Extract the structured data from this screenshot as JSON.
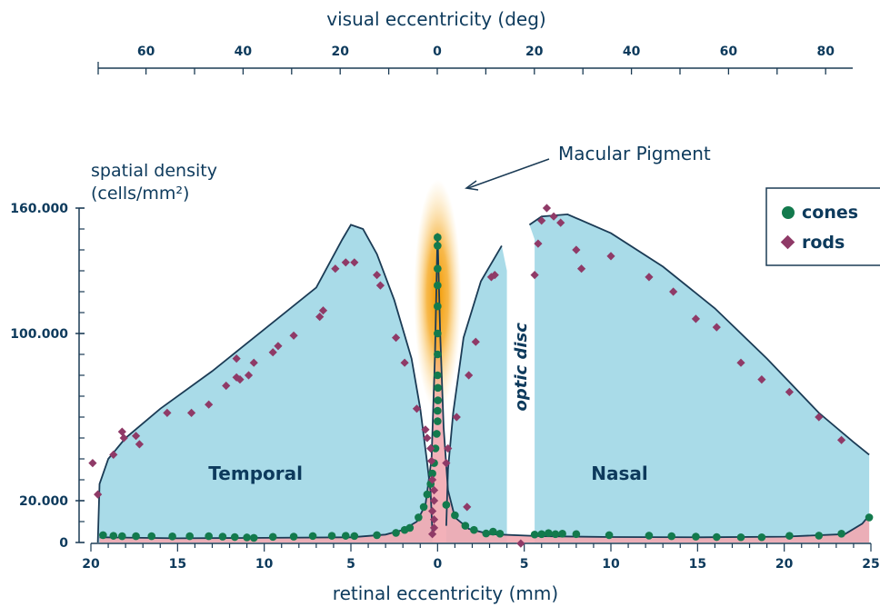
{
  "chart_data": {
    "type": "area",
    "title": "",
    "top_axis": {
      "label": "visual eccentricity (deg)",
      "tick_labels": [
        {
          "label": "60",
          "deg": -60
        },
        {
          "label": "40",
          "deg": -40
        },
        {
          "label": "20",
          "deg": -20
        },
        {
          "label": "0",
          "deg": 0
        },
        {
          "label": "20",
          "deg": 20
        },
        {
          "label": "40",
          "deg": 40
        },
        {
          "label": "60",
          "deg": 60
        },
        {
          "label": "80",
          "deg": 80
        }
      ],
      "minor_step_deg": 10
    },
    "ylabel_line1": "spatial density",
    "ylabel_line2": "(cells/mm²)",
    "xlabel": "retinal eccentricity (mm)",
    "xlim": [
      -20,
      25
    ],
    "ylim": [
      0,
      160000
    ],
    "y_tick_labels": [
      {
        "label": "160.000",
        "value": 160000
      },
      {
        "label": "100.000",
        "value": 100000
      },
      {
        "label": "20.000",
        "value": 20000
      },
      {
        "label": "0",
        "value": 0
      }
    ],
    "y_minor_step": 10000,
    "x_tick_labels": [
      {
        "label": "20",
        "value": -20
      },
      {
        "label": "15",
        "value": -15
      },
      {
        "label": "10",
        "value": -10
      },
      {
        "label": "5",
        "value": -5
      },
      {
        "label": "0",
        "value": 0
      },
      {
        "label": "5",
        "value": 5
      },
      {
        "label": "10",
        "value": 10
      },
      {
        "label": "15",
        "value": 15
      },
      {
        "label": "20",
        "value": 20
      },
      {
        "label": "25",
        "value": 25
      }
    ],
    "x_minor_step": 1,
    "legend": {
      "placement": "top-right",
      "items": [
        "cones",
        "rods"
      ]
    },
    "annotations": {
      "macular_pigment": "Macular Pigment",
      "optic_disc": "optic disc",
      "temporal": "Temporal",
      "nasal": "Nasal"
    },
    "colors": {
      "rod_fill": "#a9dbe8",
      "cone_fill": "#f2a8b1",
      "outline": "#1b3b55",
      "cone_marker": "#137a4d",
      "rod_marker": "#8f3a67",
      "text": "#0d3a5c",
      "pigment": "#f5a300"
    },
    "optic_disc_gap": {
      "x_from": 4,
      "x_to": 5.6
    },
    "rod_curve_temporal": [
      {
        "x": -19.6,
        "y": 0
      },
      {
        "x": -19.5,
        "y": 28000
      },
      {
        "x": -19,
        "y": 40000
      },
      {
        "x": -18,
        "y": 50000
      },
      {
        "x": -16,
        "y": 64000
      },
      {
        "x": -13,
        "y": 82000
      },
      {
        "x": -10,
        "y": 102000
      },
      {
        "x": -7,
        "y": 122000
      },
      {
        "x": -5.5,
        "y": 145000
      },
      {
        "x": -5,
        "y": 152000
      },
      {
        "x": -4.3,
        "y": 150000
      },
      {
        "x": -3.5,
        "y": 138000
      },
      {
        "x": -2.5,
        "y": 116000
      },
      {
        "x": -1.5,
        "y": 88000
      },
      {
        "x": -1,
        "y": 64000
      },
      {
        "x": -0.6,
        "y": 38000
      },
      {
        "x": -0.4,
        "y": 24000
      },
      {
        "x": -0.3,
        "y": 5000
      }
    ],
    "rod_curve_nasal_inner": [
      {
        "x": 0.5,
        "y": 8000
      },
      {
        "x": 0.6,
        "y": 35000
      },
      {
        "x": 0.9,
        "y": 62000
      },
      {
        "x": 1.5,
        "y": 98000
      },
      {
        "x": 2.5,
        "y": 125000
      },
      {
        "x": 3.7,
        "y": 142000
      }
    ],
    "rod_curve_nasal_outer": [
      {
        "x": 5.3,
        "y": 152000
      },
      {
        "x": 6,
        "y": 156000
      },
      {
        "x": 7.5,
        "y": 157000
      },
      {
        "x": 10,
        "y": 148000
      },
      {
        "x": 13,
        "y": 132000
      },
      {
        "x": 16,
        "y": 112000
      },
      {
        "x": 19,
        "y": 88000
      },
      {
        "x": 22,
        "y": 62000
      },
      {
        "x": 24,
        "y": 48000
      },
      {
        "x": 24.9,
        "y": 42000
      },
      {
        "x": 24.9,
        "y": 0
      }
    ],
    "cone_curve": [
      {
        "x": -19.5,
        "y": 2500
      },
      {
        "x": -15,
        "y": 2000
      },
      {
        "x": -10,
        "y": 2200
      },
      {
        "x": -5,
        "y": 2500
      },
      {
        "x": -3,
        "y": 3800
      },
      {
        "x": -2,
        "y": 6000
      },
      {
        "x": -1.2,
        "y": 10000
      },
      {
        "x": -0.7,
        "y": 18000
      },
      {
        "x": -0.35,
        "y": 40000
      },
      {
        "x": -0.15,
        "y": 90000
      },
      {
        "x": 0,
        "y": 148000
      },
      {
        "x": 0.15,
        "y": 100000
      },
      {
        "x": 0.35,
        "y": 55000
      },
      {
        "x": 0.6,
        "y": 25000
      },
      {
        "x": 1,
        "y": 12000
      },
      {
        "x": 1.8,
        "y": 6500
      },
      {
        "x": 3,
        "y": 4000
      },
      {
        "x": 6,
        "y": 3000
      },
      {
        "x": 10,
        "y": 2600
      },
      {
        "x": 15,
        "y": 2500
      },
      {
        "x": 20,
        "y": 2800
      },
      {
        "x": 23.5,
        "y": 4000
      },
      {
        "x": 24.5,
        "y": 9000
      },
      {
        "x": 24.9,
        "y": 13000
      }
    ],
    "series": [
      {
        "name": "cones",
        "marker": "circle",
        "points": [
          {
            "x": -19.3,
            "y": 3500
          },
          {
            "x": -18.7,
            "y": 3200
          },
          {
            "x": -18.2,
            "y": 3000
          },
          {
            "x": -17.4,
            "y": 3000
          },
          {
            "x": -16.5,
            "y": 3000
          },
          {
            "x": -15.3,
            "y": 2900
          },
          {
            "x": -14.3,
            "y": 3000
          },
          {
            "x": -13.2,
            "y": 3000
          },
          {
            "x": -12.4,
            "y": 2800
          },
          {
            "x": -11.7,
            "y": 2600
          },
          {
            "x": -11,
            "y": 2400
          },
          {
            "x": -10.6,
            "y": 2200
          },
          {
            "x": -9.5,
            "y": 2700
          },
          {
            "x": -8.3,
            "y": 2800
          },
          {
            "x": -7.2,
            "y": 3100
          },
          {
            "x": -6.1,
            "y": 3200
          },
          {
            "x": -5.3,
            "y": 3200
          },
          {
            "x": -4.8,
            "y": 3100
          },
          {
            "x": -3.5,
            "y": 3500
          },
          {
            "x": -2.4,
            "y": 4600
          },
          {
            "x": -1.9,
            "y": 6000
          },
          {
            "x": -1.6,
            "y": 7000
          },
          {
            "x": -1.1,
            "y": 12000
          },
          {
            "x": -0.8,
            "y": 17000
          },
          {
            "x": -0.6,
            "y": 23000
          },
          {
            "x": -0.4,
            "y": 28000
          },
          {
            "x": -0.3,
            "y": 33000
          },
          {
            "x": -0.2,
            "y": 38000
          },
          {
            "x": -0.12,
            "y": 45000
          },
          {
            "x": -0.05,
            "y": 52000
          },
          {
            "x": 0,
            "y": 58000
          },
          {
            "x": 0,
            "y": 63000
          },
          {
            "x": 0.02,
            "y": 68000
          },
          {
            "x": 0.02,
            "y": 74000
          },
          {
            "x": 0,
            "y": 80000
          },
          {
            "x": 0,
            "y": 90000
          },
          {
            "x": 0,
            "y": 100000
          },
          {
            "x": 0,
            "y": 113000
          },
          {
            "x": 0,
            "y": 123000
          },
          {
            "x": 0,
            "y": 131000
          },
          {
            "x": 0,
            "y": 142000
          },
          {
            "x": 0,
            "y": 146000
          },
          {
            "x": 0.5,
            "y": 18000
          },
          {
            "x": 1,
            "y": 13000
          },
          {
            "x": 1.6,
            "y": 8000
          },
          {
            "x": 2.1,
            "y": 6000
          },
          {
            "x": 2.8,
            "y": 4300
          },
          {
            "x": 3.2,
            "y": 5200
          },
          {
            "x": 3.6,
            "y": 4200
          },
          {
            "x": 5.6,
            "y": 3800
          },
          {
            "x": 6,
            "y": 4000
          },
          {
            "x": 6.4,
            "y": 4500
          },
          {
            "x": 6.8,
            "y": 4000
          },
          {
            "x": 7.2,
            "y": 4200
          },
          {
            "x": 8,
            "y": 4000
          },
          {
            "x": 9.9,
            "y": 3500
          },
          {
            "x": 12.2,
            "y": 3300
          },
          {
            "x": 13.5,
            "y": 3000
          },
          {
            "x": 14.9,
            "y": 2800
          },
          {
            "x": 16.1,
            "y": 2600
          },
          {
            "x": 17.5,
            "y": 2500
          },
          {
            "x": 18.7,
            "y": 2500
          },
          {
            "x": 20.3,
            "y": 3200
          },
          {
            "x": 22,
            "y": 3300
          },
          {
            "x": 23.3,
            "y": 4200
          },
          {
            "x": 24.9,
            "y": 12000
          }
        ]
      },
      {
        "name": "rods",
        "marker": "diamond",
        "points": [
          {
            "x": -19.9,
            "y": 38000
          },
          {
            "x": -19.6,
            "y": 23000
          },
          {
            "x": -18.7,
            "y": 42000
          },
          {
            "x": -18.2,
            "y": 53000
          },
          {
            "x": -18.1,
            "y": 50000
          },
          {
            "x": -17.4,
            "y": 51000
          },
          {
            "x": -17.2,
            "y": 47000
          },
          {
            "x": -15.6,
            "y": 62000
          },
          {
            "x": -14.2,
            "y": 62000
          },
          {
            "x": -13.2,
            "y": 66000
          },
          {
            "x": -12.2,
            "y": 75000
          },
          {
            "x": -11.6,
            "y": 79000
          },
          {
            "x": -11.4,
            "y": 78000
          },
          {
            "x": -11.6,
            "y": 88000
          },
          {
            "x": -10.9,
            "y": 80000
          },
          {
            "x": -10.6,
            "y": 86000
          },
          {
            "x": -9.5,
            "y": 91000
          },
          {
            "x": -9.2,
            "y": 94000
          },
          {
            "x": -8.3,
            "y": 99000
          },
          {
            "x": -6.8,
            "y": 108000
          },
          {
            "x": -6.6,
            "y": 111000
          },
          {
            "x": -5.9,
            "y": 131000
          },
          {
            "x": -5.3,
            "y": 134000
          },
          {
            "x": -4.8,
            "y": 134000
          },
          {
            "x": -3.5,
            "y": 128000
          },
          {
            "x": -3.3,
            "y": 123000
          },
          {
            "x": -2.4,
            "y": 98000
          },
          {
            "x": -1.9,
            "y": 86000
          },
          {
            "x": -1.2,
            "y": 64000
          },
          {
            "x": -0.7,
            "y": 54000
          },
          {
            "x": -0.6,
            "y": 50000
          },
          {
            "x": -0.4,
            "y": 45000
          },
          {
            "x": -0.35,
            "y": 39000
          },
          {
            "x": -0.3,
            "y": 30000
          },
          {
            "x": -0.2,
            "y": 25000
          },
          {
            "x": -0.2,
            "y": 20000
          },
          {
            "x": -0.3,
            "y": 15000
          },
          {
            "x": -0.2,
            "y": 11000
          },
          {
            "x": -0.2,
            "y": 7000
          },
          {
            "x": -0.3,
            "y": 4000
          },
          {
            "x": 0.5,
            "y": 38000
          },
          {
            "x": 0.6,
            "y": 45000
          },
          {
            "x": 1.1,
            "y": 60000
          },
          {
            "x": 1.8,
            "y": 80000
          },
          {
            "x": 2.2,
            "y": 96000
          },
          {
            "x": 3.1,
            "y": 127000
          },
          {
            "x": 3.3,
            "y": 128000
          },
          {
            "x": 1.7,
            "y": 17000
          },
          {
            "x": 4.8,
            "y": -500
          },
          {
            "x": 5.6,
            "y": 128000
          },
          {
            "x": 5.8,
            "y": 143000
          },
          {
            "x": 6,
            "y": 154000
          },
          {
            "x": 6.3,
            "y": 160000
          },
          {
            "x": 6.7,
            "y": 156000
          },
          {
            "x": 7.1,
            "y": 153000
          },
          {
            "x": 8,
            "y": 140000
          },
          {
            "x": 8.3,
            "y": 131000
          },
          {
            "x": 10,
            "y": 137000
          },
          {
            "x": 12.2,
            "y": 127000
          },
          {
            "x": 13.6,
            "y": 120000
          },
          {
            "x": 14.9,
            "y": 107000
          },
          {
            "x": 16.1,
            "y": 103000
          },
          {
            "x": 17.5,
            "y": 86000
          },
          {
            "x": 18.7,
            "y": 78000
          },
          {
            "x": 20.3,
            "y": 72000
          },
          {
            "x": 22,
            "y": 60000
          },
          {
            "x": 23.3,
            "y": 49000
          }
        ]
      }
    ]
  }
}
